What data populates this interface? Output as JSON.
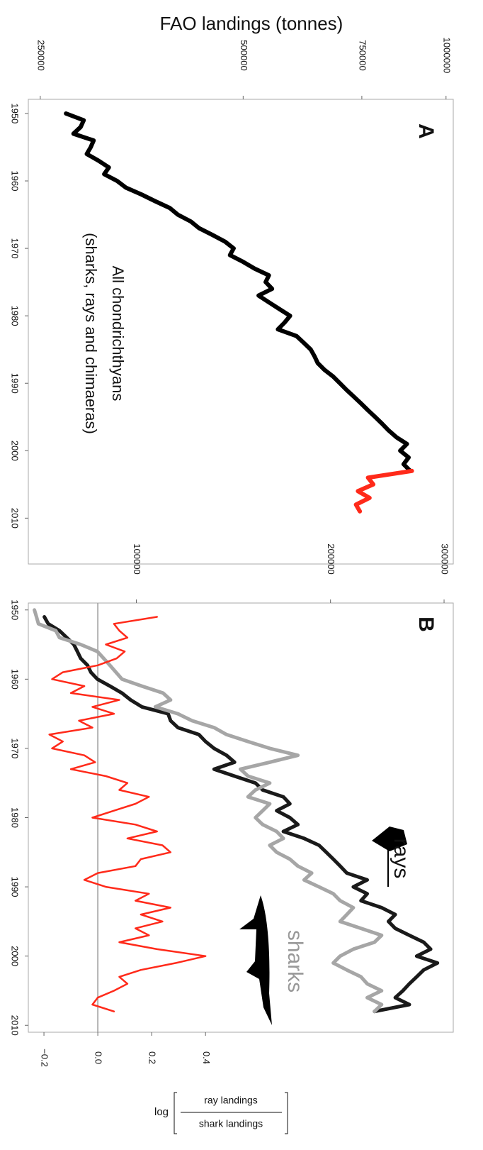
{
  "chart_data": [
    {
      "type": "line",
      "ylabel": "FAO landings (tonnes)",
      "panel_label": "A",
      "annotations": [
        "All chondrichthyans",
        "(sharks, rays and chimaeras)"
      ],
      "log_y": true,
      "ylim": [
        240000,
        1025000
      ],
      "yticks": [
        250000,
        500000,
        750000,
        1000000
      ],
      "xlim": [
        1947.9,
        2016.8
      ],
      "xticks": [
        1950,
        1960,
        1970,
        1980,
        1990,
        2000,
        2010
      ],
      "series": [
        {
          "color": "#000000",
          "x": [
            1950,
            1951,
            1952,
            1953,
            1954,
            1955,
            1956,
            1957,
            1958,
            1959,
            1960,
            1961,
            1962,
            1963,
            1964,
            1965,
            1966,
            1967,
            1968,
            1969,
            1970,
            1971,
            1972,
            1973,
            1974,
            1975,
            1976,
            1977,
            1978,
            1979,
            1980,
            1981,
            1982,
            1983,
            1984,
            1985,
            1986,
            1987,
            1988,
            1989,
            1990,
            1991,
            1992,
            1993,
            1994,
            1995,
            1996,
            1997,
            1998,
            1999,
            2000,
            2001,
            2002,
            2003
          ],
          "values": [
            273000,
            290000,
            287000,
            280000,
            300000,
            297000,
            293000,
            305000,
            316000,
            311000,
            325000,
            335000,
            353000,
            370000,
            389000,
            400000,
            418000,
            430000,
            450000,
            470000,
            484000,
            478000,
            500000,
            520000,
            546000,
            540000,
            552000,
            527000,
            546000,
            566000,
            587000,
            576000,
            563000,
            600000,
            615000,
            630000,
            638000,
            645000,
            660000,
            680000,
            696000,
            712000,
            730000,
            748000,
            766000,
            785000,
            804000,
            822000,
            844000,
            875000,
            855000,
            880000,
            865000,
            885000
          ]
        },
        {
          "color": "#ff2a1a",
          "x": [
            2003,
            2004,
            2005,
            2006,
            2007,
            2008,
            2009
          ],
          "values": [
            890000,
            766000,
            780000,
            740000,
            770000,
            735000,
            745000
          ]
        }
      ]
    },
    {
      "type": "line",
      "panel_label": "B",
      "log_y": true,
      "ylim": [
        68000,
        310000
      ],
      "yticks": [
        100000,
        200000,
        300000
      ],
      "xlim": [
        1949,
        2011
      ],
      "xticks": [
        1950,
        1960,
        1970,
        1980,
        1990,
        2000,
        2010
      ],
      "y2lim": [
        -0.258,
        1.32
      ],
      "y2ticks": [
        {
          "value": -0.2,
          "label": "−0.2"
        },
        {
          "value": 0,
          "label": "0.0"
        },
        0.2,
        0.4
      ],
      "y2refline": 0,
      "y2label": {
        "prefix": "log",
        "numerator": "ray landings",
        "denominator": "shark landings"
      },
      "series": [
        {
          "name": "rays",
          "color": "#1a1a1a",
          "x": [
            1951,
            1952,
            1953,
            1954,
            1955,
            1956,
            1957,
            1958,
            1959,
            1960,
            1961,
            1962,
            1963,
            1964,
            1965,
            1966,
            1967,
            1968,
            1969,
            1970,
            1971,
            1972,
            1973,
            1974,
            1975,
            1976,
            1977,
            1978,
            1979,
            1980,
            1981,
            1982,
            1983,
            1984,
            1985,
            1986,
            1987,
            1988,
            1989,
            1990,
            1991,
            1992,
            1993,
            1994,
            1995,
            1996,
            1997,
            1998,
            1999,
            2000,
            2001,
            2002,
            2003,
            2004,
            2005,
            2006,
            2007,
            2008
          ],
          "values": [
            72000,
            73000,
            76000,
            78000,
            80000,
            81000,
            82000,
            84000,
            85000,
            87000,
            91000,
            95000,
            98000,
            102000,
            112000,
            113000,
            116000,
            125000,
            128000,
            132000,
            138000,
            142000,
            132000,
            142000,
            153000,
            157000,
            169000,
            173000,
            165000,
            173000,
            178000,
            169000,
            182000,
            192000,
            197000,
            202000,
            207000,
            212000,
            228000,
            217000,
            228000,
            223000,
            240000,
            252000,
            246000,
            252000,
            265000,
            279000,
            286000,
            272000,
            293000,
            279000,
            272000,
            265000,
            259000,
            252000,
            265000,
            234000
          ]
        },
        {
          "name": "sharks",
          "color": "#a6a6a6",
          "x": [
            1950,
            1951,
            1952,
            1953,
            1954,
            1955,
            1956,
            1957,
            1958,
            1959,
            1960,
            1961,
            1962,
            1963,
            1964,
            1965,
            1966,
            1967,
            1968,
            1969,
            1970,
            1971,
            1972,
            1973,
            1974,
            1975,
            1976,
            1977,
            1978,
            1979,
            1980,
            1981,
            1982,
            1983,
            1984,
            1985,
            1986,
            1987,
            1988,
            1989,
            1990,
            1991,
            1992,
            1993,
            1994,
            1995,
            1996,
            1997,
            1998,
            1999,
            2000,
            2001,
            2002,
            2003,
            2004,
            2005,
            2006,
            2007,
            2008
          ],
          "values": [
            69500,
            70000,
            70500,
            75000,
            76000,
            82000,
            87000,
            89000,
            91000,
            93000,
            95000,
            102000,
            110000,
            113000,
            107000,
            116000,
            122000,
            132000,
            138000,
            149000,
            161000,
            178000,
            161000,
            145000,
            149000,
            161000,
            153000,
            149000,
            161000,
            157000,
            153000,
            157000,
            165000,
            169000,
            161000,
            165000,
            173000,
            178000,
            187000,
            182000,
            192000,
            202000,
            207000,
            217000,
            212000,
            207000,
            223000,
            240000,
            234000,
            217000,
            207000,
            202000,
            212000,
            223000,
            228000,
            240000,
            228000,
            240000,
            234000
          ]
        },
        {
          "color": "#ff2a1a",
          "axis": "y2",
          "x": [
            1951,
            1952,
            1953,
            1954,
            1955,
            1956,
            1957,
            1958,
            1959,
            1960,
            1961,
            1962,
            1963,
            1964,
            1965,
            1966,
            1967,
            1968,
            1969,
            1970,
            1971,
            1972,
            1973,
            1974,
            1975,
            1976,
            1977,
            1978,
            1979,
            1980,
            1981,
            1982,
            1983,
            1984,
            1985,
            1986,
            1987,
            1988,
            1989,
            1990,
            1991,
            1992,
            1993,
            1994,
            1995,
            1996,
            1997,
            1998,
            1999,
            2000,
            2001,
            2002,
            2003,
            2004,
            2005,
            2006,
            2007,
            2008
          ],
          "values": [
            0.22,
            0.06,
            0.08,
            0.11,
            0.03,
            0.1,
            0.07,
            0.0,
            -0.13,
            -0.17,
            -0.05,
            -0.1,
            0.08,
            -0.02,
            0.06,
            -0.07,
            -0.02,
            -0.18,
            -0.13,
            -0.17,
            -0.05,
            -0.01,
            -0.1,
            0.03,
            0.11,
            0.08,
            0.19,
            0.14,
            0.06,
            -0.02,
            0.14,
            0.22,
            0.11,
            0.24,
            0.27,
            0.16,
            0.14,
            0.0,
            -0.05,
            0.03,
            0.19,
            0.14,
            0.27,
            0.16,
            0.24,
            0.14,
            0.19,
            0.08,
            0.22,
            0.4,
            0.29,
            0.16,
            0.08,
            0.11,
            0.06,
            0.0,
            -0.02,
            0.06
          ]
        }
      ]
    }
  ]
}
